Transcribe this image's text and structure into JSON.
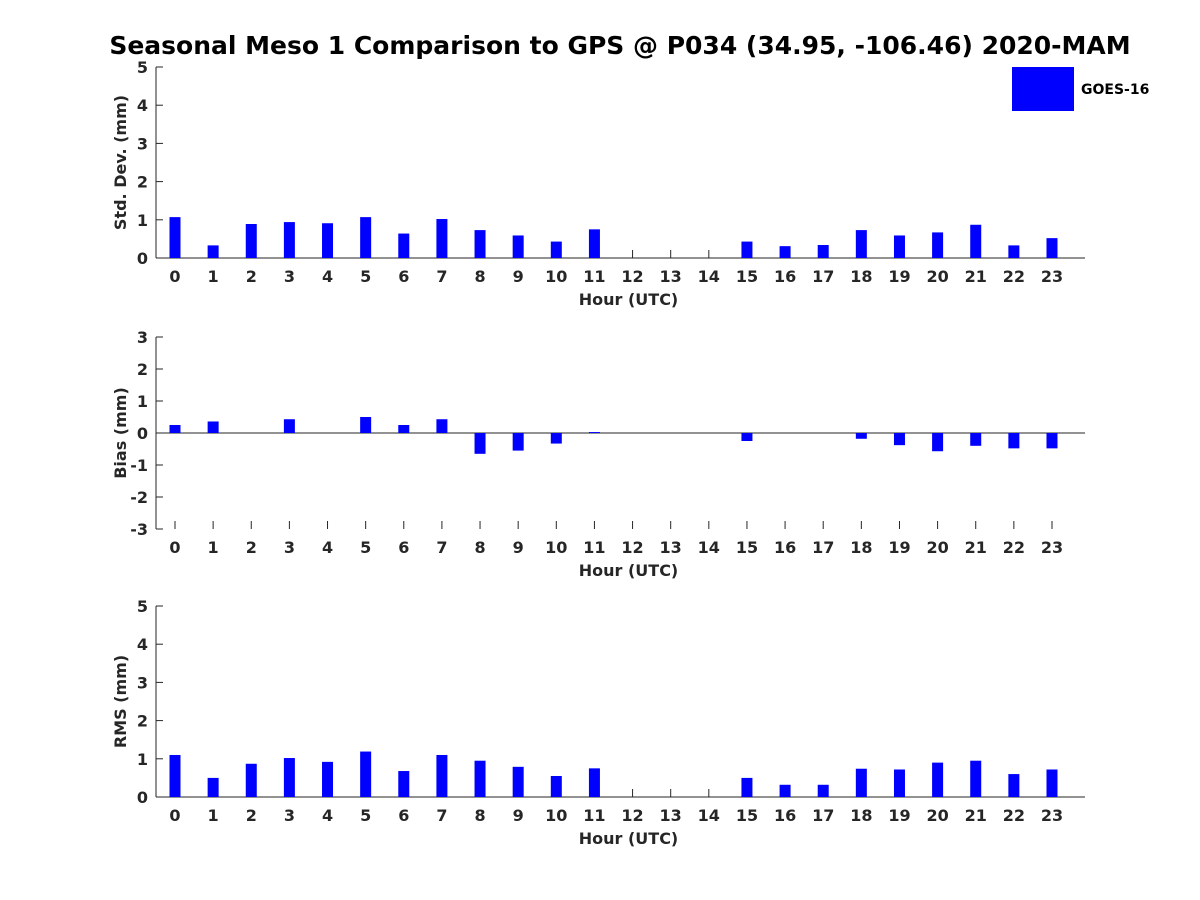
{
  "chart_data": [
    {
      "type": "bar",
      "title": "Seasonal Meso 1 Comparison to GPS @ P034 (34.95, -106.46) 2020-MAM",
      "xlabel": "Hour (UTC)",
      "ylabel": "Std. Dev. (mm)",
      "ylim": [
        0,
        5
      ],
      "yticks": [
        "0",
        "1",
        "2",
        "3",
        "4",
        "5"
      ],
      "categories": [
        "0",
        "1",
        "2",
        "3",
        "4",
        "5",
        "6",
        "7",
        "8",
        "9",
        "10",
        "11",
        "12",
        "13",
        "14",
        "15",
        "16",
        "17",
        "18",
        "19",
        "20",
        "21",
        "22",
        "23"
      ],
      "series": [
        {
          "name": "GOES-16",
          "values": [
            1.07,
            0.33,
            0.89,
            0.94,
            0.91,
            1.07,
            0.64,
            1.02,
            0.73,
            0.59,
            0.43,
            0.75,
            null,
            null,
            null,
            0.43,
            0.31,
            0.34,
            0.73,
            0.59,
            0.67,
            0.87,
            0.33,
            0.52
          ]
        }
      ]
    },
    {
      "type": "bar",
      "xlabel": "Hour (UTC)",
      "ylabel": "Bias (mm)",
      "ylim": [
        -3,
        3
      ],
      "yticks": [
        "-3",
        "-2",
        "-1",
        "0",
        "1",
        "2",
        "3"
      ],
      "categories": [
        "0",
        "1",
        "2",
        "3",
        "4",
        "5",
        "6",
        "7",
        "8",
        "9",
        "10",
        "11",
        "12",
        "13",
        "14",
        "15",
        "16",
        "17",
        "18",
        "19",
        "20",
        "21",
        "22",
        "23"
      ],
      "series": [
        {
          "name": "GOES-16",
          "values": [
            0.25,
            0.36,
            0.0,
            0.43,
            0.0,
            0.5,
            0.25,
            0.43,
            -0.65,
            -0.55,
            -0.33,
            0.03,
            null,
            null,
            null,
            -0.25,
            0.0,
            0.0,
            -0.18,
            -0.38,
            -0.57,
            -0.4,
            -0.48,
            -0.48
          ]
        }
      ]
    },
    {
      "type": "bar",
      "xlabel": "Hour (UTC)",
      "ylabel": "RMS (mm)",
      "ylim": [
        0,
        5
      ],
      "yticks": [
        "0",
        "1",
        "2",
        "3",
        "4",
        "5"
      ],
      "categories": [
        "0",
        "1",
        "2",
        "3",
        "4",
        "5",
        "6",
        "7",
        "8",
        "9",
        "10",
        "11",
        "12",
        "13",
        "14",
        "15",
        "16",
        "17",
        "18",
        "19",
        "20",
        "21",
        "22",
        "23"
      ],
      "series": [
        {
          "name": "GOES-16",
          "values": [
            1.1,
            0.5,
            0.87,
            1.02,
            0.92,
            1.19,
            0.68,
            1.1,
            0.95,
            0.79,
            0.55,
            0.75,
            null,
            null,
            null,
            0.5,
            0.32,
            0.32,
            0.74,
            0.72,
            0.9,
            0.95,
            0.6,
            0.72
          ]
        }
      ]
    }
  ],
  "legend": {
    "label": "GOES-16",
    "position": "top-right"
  },
  "colors": {
    "bar": "#0000ff",
    "axis": "#262626",
    "text": "#000000"
  }
}
